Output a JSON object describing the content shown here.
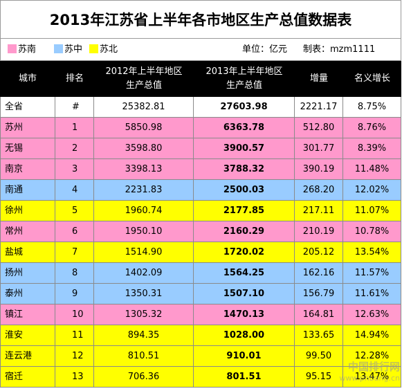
{
  "title": "2013年江苏省上半年各市地区生产总值数据表",
  "legend": [
    {
      "label": "苏南",
      "color": "#FF99CC"
    },
    {
      "label": "苏中",
      "color": "#99CCFF"
    },
    {
      "label": "苏北",
      "color": "#FFFF00"
    }
  ],
  "unit_text": "单位：亿元",
  "maker_text": "制表：mzm1111",
  "columns": [
    "城市",
    "排名",
    "2012年上半年地区生产总值",
    "2013年上半年地区生产总值",
    "增量",
    "名义增长"
  ],
  "column_lines": [
    [
      "城市"
    ],
    [
      "排名"
    ],
    [
      "2012年上半年地区",
      "生产总值"
    ],
    [
      "2013年上半年地区",
      "生产总值"
    ],
    [
      "增量"
    ],
    [
      "名义增长"
    ]
  ],
  "colors": {
    "苏南": "#FF99CC",
    "苏中": "#99CCFF",
    "苏北": "#FFFF00",
    "全省": "#FFFFFF",
    "header": "#000000"
  },
  "rows": [
    {
      "city": "全省",
      "rank": "#",
      "gdp2012": "25382.81",
      "gdp2013": "27603.98",
      "increase": "2221.17",
      "growth": "8.75%",
      "region": "全省"
    },
    {
      "city": "苏州",
      "rank": "1",
      "gdp2012": "5850.98",
      "gdp2013": "6363.78",
      "increase": "512.80",
      "growth": "8.76%",
      "region": "苏南"
    },
    {
      "city": "无锡",
      "rank": "2",
      "gdp2012": "3598.80",
      "gdp2013": "3900.57",
      "increase": "301.77",
      "growth": "8.39%",
      "region": "苏南"
    },
    {
      "city": "南京",
      "rank": "3",
      "gdp2012": "3398.13",
      "gdp2013": "3788.32",
      "increase": "390.19",
      "growth": "11.48%",
      "region": "苏南"
    },
    {
      "city": "南通",
      "rank": "4",
      "gdp2012": "2231.83",
      "gdp2013": "2500.03",
      "increase": "268.20",
      "growth": "12.02%",
      "region": "苏中"
    },
    {
      "city": "徐州",
      "rank": "5",
      "gdp2012": "1960.74",
      "gdp2013": "2177.85",
      "increase": "217.11",
      "growth": "11.07%",
      "region": "苏北"
    },
    {
      "city": "常州",
      "rank": "6",
      "gdp2012": "1950.10",
      "gdp2013": "2160.29",
      "increase": "210.19",
      "growth": "10.78%",
      "region": "苏南"
    },
    {
      "city": "盐城",
      "rank": "7",
      "gdp2012": "1514.90",
      "gdp2013": "1720.02",
      "increase": "205.12",
      "growth": "13.54%",
      "region": "苏北"
    },
    {
      "city": "扬州",
      "rank": "8",
      "gdp2012": "1402.09",
      "gdp2013": "1564.25",
      "increase": "162.16",
      "growth": "11.57%",
      "region": "苏中"
    },
    {
      "city": "泰州",
      "rank": "9",
      "gdp2012": "1350.31",
      "gdp2013": "1507.10",
      "increase": "156.79",
      "growth": "11.61%",
      "region": "苏中"
    },
    {
      "city": "镇江",
      "rank": "10",
      "gdp2012": "1305.32",
      "gdp2013": "1470.13",
      "increase": "164.81",
      "growth": "12.63%",
      "region": "苏南"
    },
    {
      "city": "淮安",
      "rank": "11",
      "gdp2012": "894.35",
      "gdp2013": "1028.00",
      "increase": "133.65",
      "growth": "14.94%",
      "region": "苏北"
    },
    {
      "city": "连云港",
      "rank": "12",
      "gdp2012": "810.51",
      "gdp2013": "910.01",
      "increase": "99.50",
      "growth": "12.28%",
      "region": "苏北"
    },
    {
      "city": "宿迁",
      "rank": "13",
      "gdp2012": "706.36",
      "gdp2013": "801.51",
      "increase": "95.15",
      "growth": "13.47%",
      "region": "苏北"
    }
  ],
  "watermark": {
    "line1": "中国排行网",
    "line2": "www.phbang.cn"
  }
}
